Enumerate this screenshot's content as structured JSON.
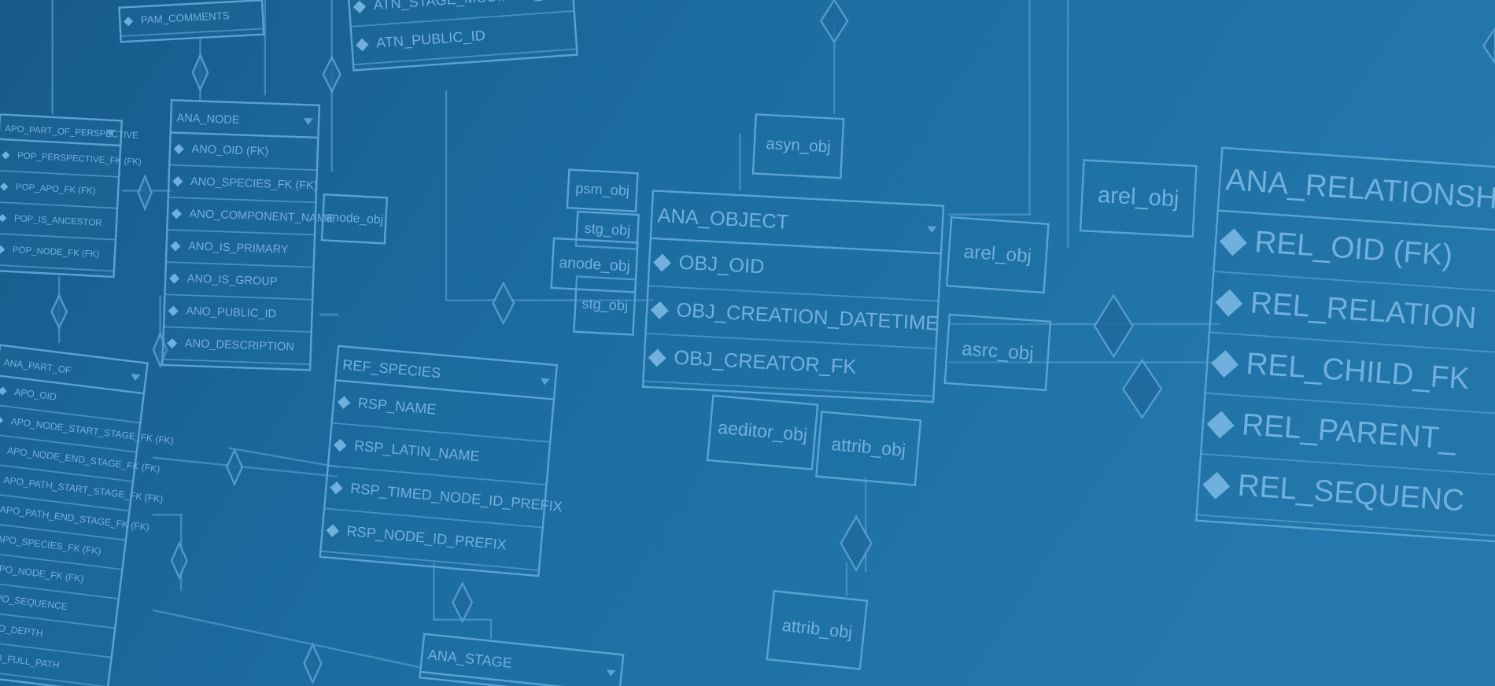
{
  "entities": [
    {
      "fields": [
        "PAM_COMMENTS"
      ]
    },
    {
      "fields": [
        "ATN_STAGE_MODIFIER_FK (FK)",
        "ATN_PUBLIC_ID"
      ]
    },
    {
      "title": "APO_PART_OF_PERSPECTIVE",
      "fields": [
        "POP_PERSPECTIVE_FK (FK)",
        "POP_APO_FK (FK)",
        "POP_IS_ANCESTOR",
        "POP_NODE_FK (FK)"
      ]
    },
    {
      "title": "ANA_NODE",
      "fields": [
        "ANO_OID (FK)",
        "ANO_SPECIES_FK (FK)",
        "ANO_COMPONENT_NAME",
        "ANO_IS_PRIMARY",
        "ANO_IS_GROUP",
        "ANO_PUBLIC_ID",
        "ANO_DESCRIPTION"
      ]
    },
    {
      "title": "ANA_PART_OF",
      "fields": [
        "APO_OID",
        "APO_NODE_START_STAGE_FK (FK)",
        "APO_NODE_END_STAGE_FK (FK)",
        "APO_PATH_START_STAGE_FK (FK)",
        "APO_PATH_END_STAGE_FK (FK)",
        "APO_SPECIES_FK (FK)",
        "APO_NODE_FK (FK)",
        "APO_SEQUENCE",
        "APO_DEPTH",
        "APO_FULL_PATH"
      ]
    },
    {
      "title": "REF_SPECIES",
      "fields": [
        "RSP_NAME",
        "RSP_LATIN_NAME",
        "RSP_TIMED_NODE_ID_PREFIX",
        "RSP_NODE_ID_PREFIX"
      ]
    },
    {
      "title": "ANA_OBJECT",
      "fields": [
        "OBJ_OID",
        "OBJ_CREATION_DATETIME",
        "OBJ_CREATOR_FK"
      ]
    },
    {
      "title": "ANA_RELATIONSH",
      "fields": [
        "REL_OID (FK)",
        "REL_RELATION",
        "REL_CHILD_FK",
        "REL_PARENT_",
        "REL_SEQUENC"
      ]
    },
    {
      "title": "ANA_STAGE",
      "fields": []
    }
  ],
  "labels": [
    "asyn_obj",
    "psm_obj",
    "stg_obj",
    "anode_obj",
    "stg_obj",
    "anode_obj",
    "arel_obj",
    "arel_obj",
    "asrc_obj",
    "aeditor_obj",
    "attrib_obj",
    "attrib_obj"
  ]
}
